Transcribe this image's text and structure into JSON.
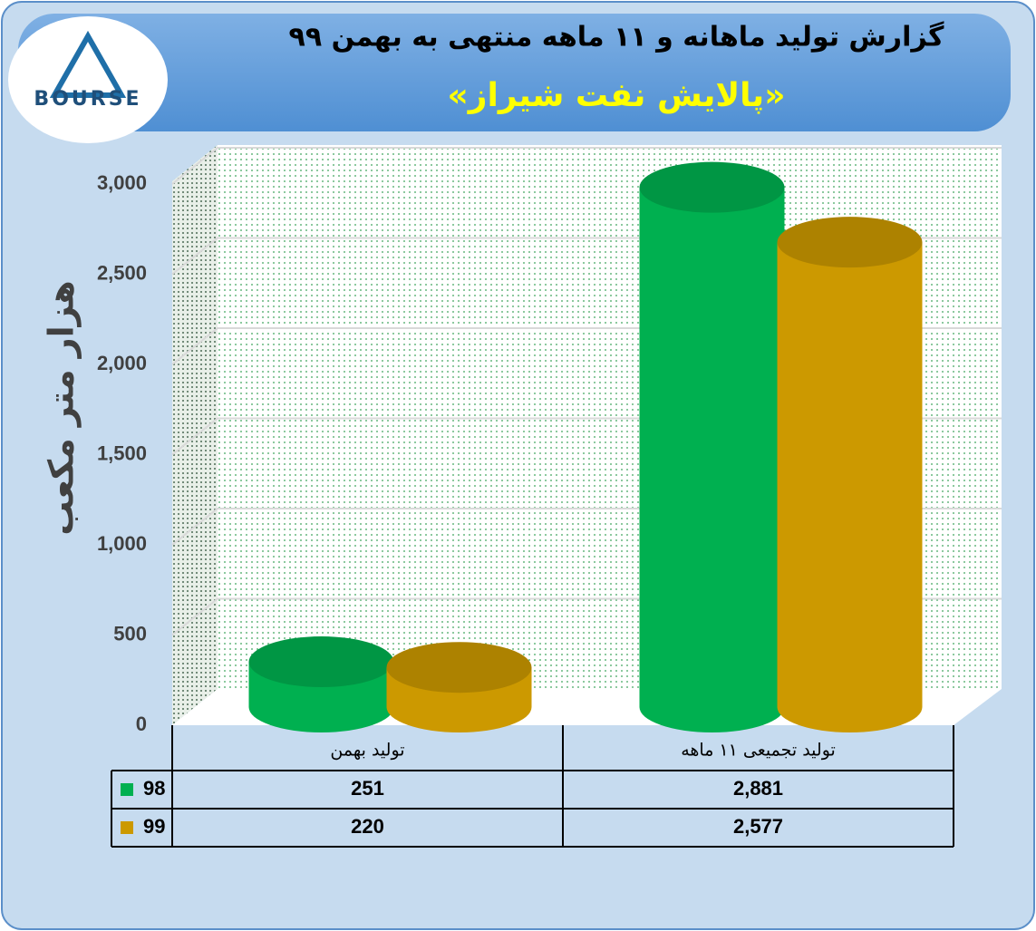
{
  "logo": "BOURSE",
  "chart_data": {
    "type": "bar",
    "title": "گزارش تولید ماهانه و ۱۱ ماهه منتهی به بهمن ۹۹",
    "subtitle": "«پالایش نفت شیراز»",
    "y_label": "هزار متر مکعب",
    "categories": [
      "تولید بهمن",
      "تولید تجمیعی ۱۱ ماهه"
    ],
    "series": [
      {
        "name": "98",
        "color": "#00b050",
        "values": [
          251,
          2881
        ],
        "value_labels": [
          "251",
          "2,881"
        ]
      },
      {
        "name": "99",
        "color": "#cc9900",
        "values": [
          220,
          2577
        ],
        "value_labels": [
          "220",
          "2,577"
        ]
      }
    ],
    "ylim": [
      0,
      3000
    ],
    "yticks": [
      0,
      500,
      {
        "value": 1000,
        "label": "1,000"
      },
      {
        "value": 1500,
        "label": "1,500"
      },
      {
        "value": 2000,
        "label": "2,000"
      },
      {
        "value": 2500,
        "label": "2,500"
      },
      {
        "value": 3000,
        "label": "3,000"
      }
    ],
    "grid": true
  }
}
